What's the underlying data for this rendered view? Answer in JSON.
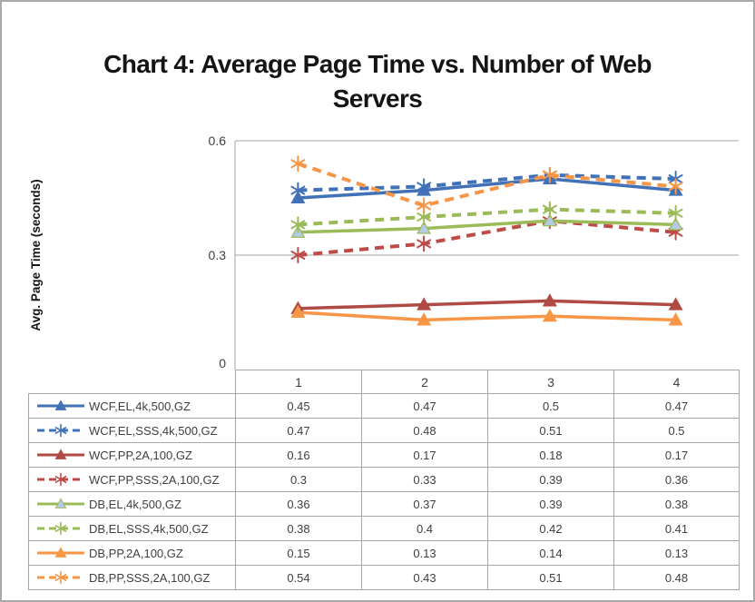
{
  "title_lines": [
    "Chart 4: Average Page Time vs. Number of Web",
    "Servers"
  ],
  "chart_data": {
    "type": "line",
    "title": "Chart 4: Average Page Time vs. Number of Web Servers",
    "xlabel": "",
    "ylabel": "Avg. Page Time (seconds)",
    "categories": [
      "1",
      "2",
      "3",
      "4"
    ],
    "ylim": [
      0,
      0.6
    ],
    "yticks": [
      0,
      0.3,
      0.6
    ],
    "ytick_labels": [
      "0",
      "0.3",
      "0.6"
    ],
    "grid": true,
    "legend_position": "table-left",
    "axis_color": "#A6A6A6",
    "tick_text_color": "#404040",
    "series": [
      {
        "name": "WCF,EL,4k,500,GZ",
        "color": "#4171B6",
        "line_style": "solid",
        "marker": "triangle",
        "marker_fill": "#4171B6",
        "values": [
          0.45,
          0.47,
          0.5,
          0.47
        ]
      },
      {
        "name": "WCF,EL,SSS,4k,500,GZ",
        "color": "#4171B6",
        "line_style": "dashed",
        "marker": "asterisk",
        "marker_fill": "#4171B6",
        "values": [
          0.47,
          0.48,
          0.51,
          0.5
        ]
      },
      {
        "name": "WCF,PP,2A,100,GZ",
        "color": "#B04A44",
        "line_style": "solid",
        "marker": "triangle",
        "marker_fill": "#B04A44",
        "values": [
          0.16,
          0.17,
          0.18,
          0.17
        ]
      },
      {
        "name": "WCF,PP,SSS,2A,100,GZ",
        "color": "#BE4B48",
        "line_style": "dashed",
        "marker": "asterisk",
        "marker_fill": "#BE4B48",
        "values": [
          0.3,
          0.33,
          0.39,
          0.36
        ]
      },
      {
        "name": "DB,EL,4k,500,GZ",
        "color": "#9BBB59",
        "line_style": "solid",
        "marker": "triangle",
        "marker_fill": "#B5CBE5",
        "values": [
          0.36,
          0.37,
          0.39,
          0.38
        ]
      },
      {
        "name": "DB,EL,SSS,4k,500,GZ",
        "color": "#9BBB59",
        "line_style": "dashed",
        "marker": "asterisk",
        "marker_fill": "#9BBB59",
        "values": [
          0.38,
          0.4,
          0.42,
          0.41
        ]
      },
      {
        "name": "DB,PP,2A,100,GZ",
        "color": "#F79646",
        "line_style": "solid",
        "marker": "triangle",
        "marker_fill": "#F79646",
        "values": [
          0.15,
          0.13,
          0.14,
          0.13
        ]
      },
      {
        "name": "DB,PP,SSS,2A,100,GZ",
        "color": "#F79646",
        "line_style": "dashed",
        "marker": "asterisk",
        "marker_fill": "#F79646",
        "values": [
          0.54,
          0.43,
          0.51,
          0.48
        ]
      }
    ]
  }
}
